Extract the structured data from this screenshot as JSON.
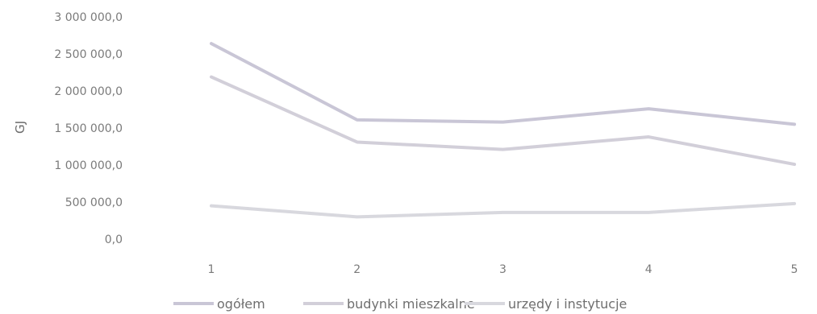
{
  "chart_data": {
    "type": "line",
    "ylabel": "GJ",
    "categories": [
      "1",
      "2",
      "3",
      "4",
      "5"
    ],
    "ylim": [
      0,
      3000000
    ],
    "y_ticks": [
      "0,0",
      "500 000,0",
      "1 000 000,0",
      "1 500 000,0",
      "2 000 000,0",
      "2 500 000,0",
      "3 000 000,0"
    ],
    "y_tick_values": [
      0,
      500000,
      1000000,
      1500000,
      2000000,
      2500000,
      3000000
    ],
    "grid": false,
    "legend_position": "bottom",
    "series": [
      {
        "name": "ogółem",
        "values": [
          2640000,
          1610000,
          1580000,
          1760000,
          1550000
        ],
        "color": "#c9c6d6"
      },
      {
        "name": "budynki mieszkalne",
        "values": [
          2190000,
          1310000,
          1210000,
          1380000,
          1010000
        ],
        "color": "#d2cfd9"
      },
      {
        "name": "urzędy i instytucje",
        "values": [
          450000,
          300000,
          360000,
          360000,
          480000
        ],
        "color": "#d8d8de"
      }
    ]
  }
}
